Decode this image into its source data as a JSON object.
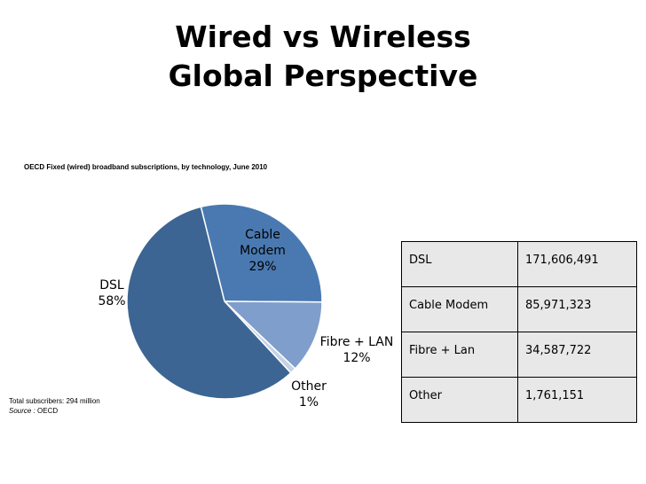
{
  "slide": {
    "title_line1": "Wired vs Wireless",
    "title_line2": "Global Perspective"
  },
  "chart_data": {
    "type": "pie",
    "title": "OECD Fixed (wired) broadband subscriptions, by technology, June 2010",
    "slices": [
      {
        "name": "Cable Modem",
        "label_lines": [
          "Cable",
          "Modem",
          "29%"
        ],
        "percent": 29,
        "color": "#4a79b1"
      },
      {
        "name": "Fibre + LAN",
        "label_lines": [
          "Fibre + LAN",
          "12%"
        ],
        "percent": 12,
        "color": "#7f9ecb"
      },
      {
        "name": "Other",
        "label_lines": [
          "Other",
          "1%"
        ],
        "percent": 1,
        "color": "#c5d3e6"
      },
      {
        "name": "DSL",
        "label_lines": [
          "DSL",
          "58%"
        ],
        "percent": 58,
        "color": "#3c6593"
      }
    ],
    "footnote": {
      "total": "Total subscribers: 294 million",
      "source_label": "Source :",
      "source": "OECD"
    }
  },
  "table": {
    "rows": [
      {
        "name": "DSL",
        "value": "171,606,491"
      },
      {
        "name": "Cable Modem",
        "value": "85,971,323"
      },
      {
        "name": "Fibre + Lan",
        "value": "34,587,722"
      },
      {
        "name": "Other",
        "value": "1,761,151"
      }
    ]
  }
}
